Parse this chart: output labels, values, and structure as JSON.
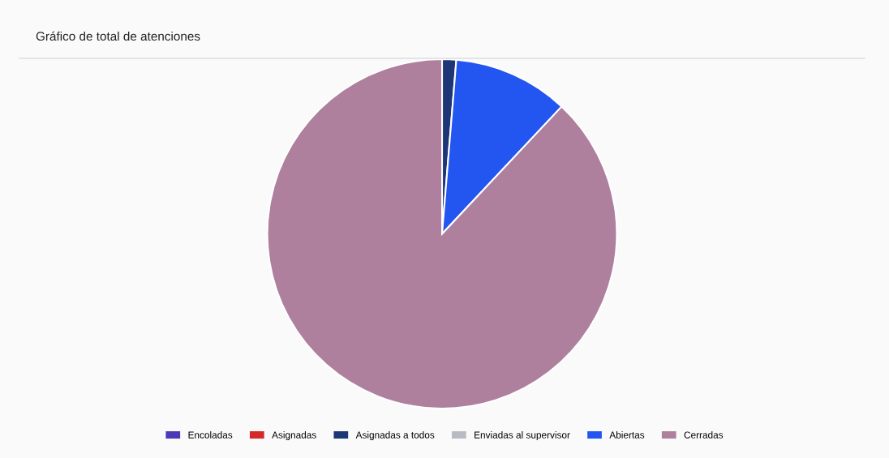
{
  "chart_data": {
    "type": "pie",
    "title": "Gráfico de total de atenciones",
    "categories": [
      "Encoladas",
      "Asignadas",
      "Asignadas a todos",
      "Enviadas al supervisor",
      "Abiertas",
      "Cerradas"
    ],
    "values": [
      0,
      0,
      1.3,
      0,
      10.7,
      88
    ],
    "colors": [
      "#4a3ab8",
      "#d42a2a",
      "#1c3676",
      "#b8bcc2",
      "#2356f0",
      "#ae809e"
    ],
    "legend": "bottom"
  }
}
